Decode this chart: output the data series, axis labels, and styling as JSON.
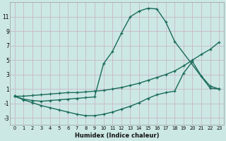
{
  "xlabel": "Humidex (Indice chaleur)",
  "bg_color": "#cce8e4",
  "grid_color": "#c8b8c8",
  "line_color": "#1a6b5a",
  "xlim": [
    -0.5,
    23.5
  ],
  "ylim": [
    -4.0,
    13.0
  ],
  "xticks": [
    0,
    1,
    2,
    3,
    4,
    5,
    6,
    7,
    8,
    9,
    10,
    11,
    12,
    13,
    14,
    15,
    16,
    17,
    18,
    19,
    20,
    21,
    22,
    23
  ],
  "yticks": [
    -3,
    -1,
    1,
    3,
    5,
    7,
    9,
    11
  ],
  "line1_x": [
    0,
    1,
    2,
    3,
    4,
    5,
    6,
    7,
    8,
    9,
    10,
    11,
    12,
    13,
    14,
    15,
    16,
    17,
    18,
    22,
    23
  ],
  "line1_y": [
    0.0,
    -0.4,
    -0.6,
    -0.7,
    -0.6,
    -0.5,
    -0.4,
    -0.3,
    -0.2,
    -0.1,
    4.5,
    6.2,
    8.7,
    11.0,
    11.8,
    12.2,
    12.1,
    10.3,
    7.6,
    1.1,
    1.0
  ],
  "line2_x": [
    0,
    1,
    2,
    3,
    4,
    5,
    6,
    7,
    8,
    9,
    10,
    11,
    12,
    13,
    14,
    15,
    16,
    17,
    18,
    19,
    20,
    21,
    22,
    23
  ],
  "line2_y": [
    0.0,
    0.0,
    0.1,
    0.2,
    0.3,
    0.4,
    0.5,
    0.5,
    0.6,
    0.7,
    0.8,
    1.0,
    1.2,
    1.5,
    1.8,
    2.2,
    2.6,
    3.0,
    3.5,
    4.2,
    5.0,
    5.8,
    6.5,
    7.5
  ],
  "line3_x": [
    0,
    1,
    2,
    3,
    4,
    5,
    6,
    7,
    8,
    9,
    10,
    11,
    12,
    13,
    14,
    15,
    16,
    17,
    18,
    19,
    20,
    21,
    22,
    23
  ],
  "line3_y": [
    0.0,
    -0.5,
    -0.9,
    -1.3,
    -1.6,
    -1.9,
    -2.2,
    -2.5,
    -2.7,
    -2.7,
    -2.5,
    -2.2,
    -1.8,
    -1.4,
    -0.9,
    -0.3,
    0.2,
    0.5,
    0.7,
    3.2,
    4.8,
    2.8,
    1.4,
    1.0
  ]
}
